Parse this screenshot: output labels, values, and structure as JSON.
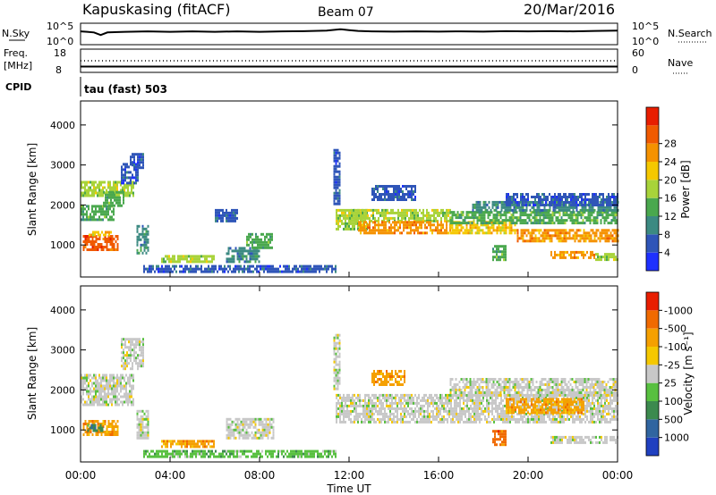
{
  "header": {
    "station": "Kapuskasing (fitACF)",
    "beam": "Beam 07",
    "date": "20/Mar/2016"
  },
  "top_panels": {
    "nsky_label": "N.Sky",
    "nsky_ticks": [
      "10^5",
      "10^0"
    ],
    "nsearch_label": "N.Search",
    "nsearch_ticks": [
      "10^5",
      "10^0"
    ],
    "freq_label": "Freq.",
    "freq_unit": "[MHz]",
    "freq_ticks": [
      "18",
      "8"
    ],
    "nave_label": "Nave",
    "nave_ticks": [
      "60",
      "0"
    ],
    "cpid_label": "CPID",
    "cpid_value": "tau (fast) 503",
    "nsky_trace": [
      [
        0.0,
        0.62
      ],
      [
        0.3,
        0.6
      ],
      [
        0.6,
        0.57
      ],
      [
        0.9,
        0.45
      ],
      [
        1.2,
        0.57
      ],
      [
        2,
        0.6
      ],
      [
        3,
        0.62
      ],
      [
        4,
        0.6
      ],
      [
        5,
        0.62
      ],
      [
        6,
        0.6
      ],
      [
        7,
        0.62
      ],
      [
        8,
        0.6
      ],
      [
        9,
        0.62
      ],
      [
        10,
        0.63
      ],
      [
        11,
        0.66
      ],
      [
        11.6,
        0.72
      ],
      [
        12,
        0.68
      ],
      [
        12.4,
        0.64
      ],
      [
        13,
        0.62
      ],
      [
        14,
        0.61
      ],
      [
        15,
        0.62
      ],
      [
        16,
        0.61
      ],
      [
        17,
        0.62
      ],
      [
        18,
        0.61
      ],
      [
        19,
        0.63
      ],
      [
        20,
        0.62
      ],
      [
        21,
        0.63
      ],
      [
        22,
        0.62
      ],
      [
        23,
        0.64
      ],
      [
        24,
        0.66
      ]
    ],
    "freq_level": 0.25,
    "nave_level": 0.5
  },
  "chart_data": [
    {
      "type": "heatmap",
      "name": "power-panel",
      "xlabel": "",
      "ylabel": "Slant Range [km]",
      "xlim": [
        0,
        24
      ],
      "ylim": [
        200,
        4600
      ],
      "yticks": [
        1000,
        2000,
        3000,
        4000
      ],
      "colorbar": {
        "label": "Power [dB]",
        "ticks": [
          "4",
          "8",
          "12",
          "16",
          "20",
          "24",
          "28"
        ],
        "colors": [
          "#1e30ff",
          "#2f55b8",
          "#3c8a82",
          "#4aa84e",
          "#a8d33a",
          "#f5c800",
          "#f59200",
          "#f05a00",
          "#e81e00"
        ]
      },
      "regions": [
        {
          "x": [
            0.0,
            2.4
          ],
          "y": [
            2200,
            2600
          ],
          "c": 4
        },
        {
          "x": [
            0.0,
            1.5
          ],
          "y": [
            1650,
            2000
          ],
          "c": 3
        },
        {
          "x": [
            1.0,
            1.9
          ],
          "y": [
            2000,
            2350
          ],
          "c": 3
        },
        {
          "x": [
            1.8,
            2.6
          ],
          "y": [
            2550,
            3050
          ],
          "c": 1
        },
        {
          "x": [
            2.2,
            2.8
          ],
          "y": [
            2900,
            3300
          ],
          "c": 1
        },
        {
          "x": [
            0.1,
            1.7
          ],
          "y": [
            850,
            1250
          ],
          "c": 7
        },
        {
          "x": [
            0.2,
            1.4
          ],
          "y": [
            1250,
            1350
          ],
          "c": 5
        },
        {
          "x": [
            2.5,
            3.0
          ],
          "y": [
            800,
            1500
          ],
          "c": 2
        },
        {
          "x": [
            3.6,
            6.0
          ],
          "y": [
            550,
            750
          ],
          "c": 4
        },
        {
          "x": [
            6.5,
            8.0
          ],
          "y": [
            600,
            950
          ],
          "c": 2
        },
        {
          "x": [
            7.4,
            8.6
          ],
          "y": [
            950,
            1300
          ],
          "c": 3
        },
        {
          "x": [
            2.8,
            11.4
          ],
          "y": [
            300,
            500
          ],
          "c": 1
        },
        {
          "x": [
            6.0,
            7.0
          ],
          "y": [
            1600,
            1900
          ],
          "c": 1
        },
        {
          "x": [
            11.4,
            12.8
          ],
          "y": [
            1400,
            1900
          ],
          "c": 4
        },
        {
          "x": [
            12.0,
            16.5
          ],
          "y": [
            1600,
            1900
          ],
          "c": 4
        },
        {
          "x": [
            12.4,
            16.5
          ],
          "y": [
            1300,
            1600
          ],
          "c": 6
        },
        {
          "x": [
            16.5,
            19.5
          ],
          "y": [
            1300,
            1600
          ],
          "c": 5
        },
        {
          "x": [
            16.5,
            24.0
          ],
          "y": [
            1550,
            1850
          ],
          "c": 3
        },
        {
          "x": [
            17.5,
            24.0
          ],
          "y": [
            1850,
            2100
          ],
          "c": 2
        },
        {
          "x": [
            19.0,
            24.0
          ],
          "y": [
            2000,
            2300
          ],
          "c": 1
        },
        {
          "x": [
            19.5,
            24.0
          ],
          "y": [
            1100,
            1400
          ],
          "c": 6
        },
        {
          "x": [
            18.4,
            19.0
          ],
          "y": [
            600,
            1000
          ],
          "c": 3
        },
        {
          "x": [
            21.0,
            23.0
          ],
          "y": [
            650,
            850
          ],
          "c": 6
        },
        {
          "x": [
            23.0,
            24.0
          ],
          "y": [
            650,
            800
          ],
          "c": 4
        },
        {
          "x": [
            13.0,
            15.0
          ],
          "y": [
            2150,
            2500
          ],
          "c": 1
        },
        {
          "x": [
            11.3,
            11.6
          ],
          "y": [
            2000,
            3400
          ],
          "c": 1
        }
      ]
    },
    {
      "type": "heatmap",
      "name": "velocity-panel",
      "xlabel": "Time UT",
      "ylabel": "Slant Range [km]",
      "xlim": [
        0,
        24
      ],
      "ylim": [
        200,
        4600
      ],
      "yticks": [
        1000,
        2000,
        3000,
        4000
      ],
      "xticks": [
        "00:00",
        "04:00",
        "08:00",
        "12:00",
        "16:00",
        "20:00",
        "00:00"
      ],
      "colorbar": {
        "label": "Velocity [m s⁻¹]",
        "ticks": [
          "1000",
          "500",
          "100",
          "25",
          "-25",
          "-100",
          "-500",
          "-1000"
        ],
        "colors": [
          "#2040c0",
          "#3065a0",
          "#3c8a4e",
          "#58c040",
          "#c8c8c8",
          "#f5c800",
          "#f5a000",
          "#f06a00",
          "#e81e00"
        ]
      },
      "regions": [
        {
          "x": [
            0.0,
            2.4
          ],
          "y": [
            1650,
            2400
          ],
          "c": 4
        },
        {
          "x": [
            1.8,
            2.8
          ],
          "y": [
            2500,
            3300
          ],
          "c": 4
        },
        {
          "x": [
            0.1,
            1.7
          ],
          "y": [
            850,
            1250
          ],
          "c": 6
        },
        {
          "x": [
            0.3,
            1.0
          ],
          "y": [
            950,
            1150
          ],
          "c": 2
        },
        {
          "x": [
            2.5,
            3.0
          ],
          "y": [
            800,
            1500
          ],
          "c": 4
        },
        {
          "x": [
            3.6,
            6.0
          ],
          "y": [
            550,
            750
          ],
          "c": 6
        },
        {
          "x": [
            6.5,
            8.6
          ],
          "y": [
            800,
            1300
          ],
          "c": 4
        },
        {
          "x": [
            2.8,
            11.4
          ],
          "y": [
            300,
            500
          ],
          "c": 3
        },
        {
          "x": [
            11.4,
            24.0
          ],
          "y": [
            1200,
            1900
          ],
          "c": 4
        },
        {
          "x": [
            16.5,
            24.0
          ],
          "y": [
            1850,
            2300
          ],
          "c": 4
        },
        {
          "x": [
            19.0,
            22.5
          ],
          "y": [
            1400,
            1800
          ],
          "c": 6
        },
        {
          "x": [
            18.4,
            19.0
          ],
          "y": [
            600,
            1000
          ],
          "c": 7
        },
        {
          "x": [
            21.0,
            24.0
          ],
          "y": [
            650,
            850
          ],
          "c": 4
        },
        {
          "x": [
            13.0,
            14.5
          ],
          "y": [
            2150,
            2500
          ],
          "c": 6
        },
        {
          "x": [
            11.3,
            11.6
          ],
          "y": [
            2000,
            3400
          ],
          "c": 4
        }
      ]
    }
  ]
}
